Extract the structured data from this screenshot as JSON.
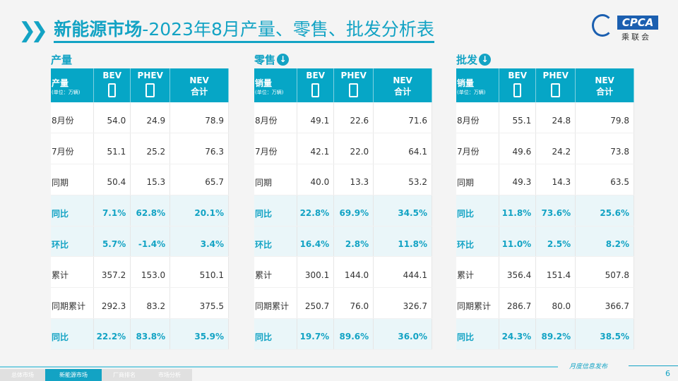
{
  "title": {
    "bold": "新能源市场",
    "rest": "-2023年8月产量、零售、批发分析表"
  },
  "logo": {
    "text": "CPCA",
    "cn": "乘联会"
  },
  "columns": {
    "bev": "BEV",
    "phev": "PHEV",
    "nev": "NEV",
    "nev_sub": "合计",
    "unit": "(单位：万辆)"
  },
  "sections": [
    {
      "title": "产量",
      "label": "产量",
      "download": false,
      "rows": [
        [
          "8月份",
          "54.0",
          "24.9",
          "78.9"
        ],
        [
          "7月份",
          "51.1",
          "25.2",
          "76.3"
        ],
        [
          "同期",
          "50.4",
          "15.3",
          "65.7"
        ],
        [
          "同比",
          "7.1%",
          "62.8%",
          "20.1%"
        ],
        [
          "环比",
          "5.7%",
          "-1.4%",
          "3.4%"
        ],
        [
          "累计",
          "357.2",
          "153.0",
          "510.1"
        ],
        [
          "同期累计",
          "292.3",
          "83.2",
          "375.5"
        ],
        [
          "同比",
          "22.2%",
          "83.8%",
          "35.9%"
        ]
      ]
    },
    {
      "title": "零售",
      "label": "销量",
      "download": true,
      "rows": [
        [
          "8月份",
          "49.1",
          "22.6",
          "71.6"
        ],
        [
          "7月份",
          "42.1",
          "22.0",
          "64.1"
        ],
        [
          "同期",
          "40.0",
          "13.3",
          "53.2"
        ],
        [
          "同比",
          "22.8%",
          "69.9%",
          "34.5%"
        ],
        [
          "环比",
          "16.4%",
          "2.8%",
          "11.8%"
        ],
        [
          "累计",
          "300.1",
          "144.0",
          "444.1"
        ],
        [
          "同期累计",
          "250.7",
          "76.0",
          "326.7"
        ],
        [
          "同比",
          "19.7%",
          "89.6%",
          "36.0%"
        ]
      ]
    },
    {
      "title": "批发",
      "label": "销量",
      "download": true,
      "rows": [
        [
          "8月份",
          "55.1",
          "24.8",
          "79.8"
        ],
        [
          "7月份",
          "49.6",
          "24.2",
          "73.8"
        ],
        [
          "同期",
          "49.3",
          "14.3",
          "63.5"
        ],
        [
          "同比",
          "11.8%",
          "73.6%",
          "25.6%"
        ],
        [
          "环比",
          "11.0%",
          "2.5%",
          "8.2%"
        ],
        [
          "累计",
          "356.4",
          "151.4",
          "507.8"
        ],
        [
          "同期累计",
          "286.7",
          "80.0",
          "366.7"
        ],
        [
          "同比",
          "24.3%",
          "89.2%",
          "38.5%"
        ]
      ]
    }
  ],
  "footer": {
    "tabs": [
      "总体市场",
      "新能源市场",
      "厂商排名",
      "市场分析"
    ],
    "active": 1,
    "monthly": "月度信息发布",
    "page": "6"
  },
  "colors": {
    "accent": "#13a3c4",
    "header": "#06a6c6"
  }
}
